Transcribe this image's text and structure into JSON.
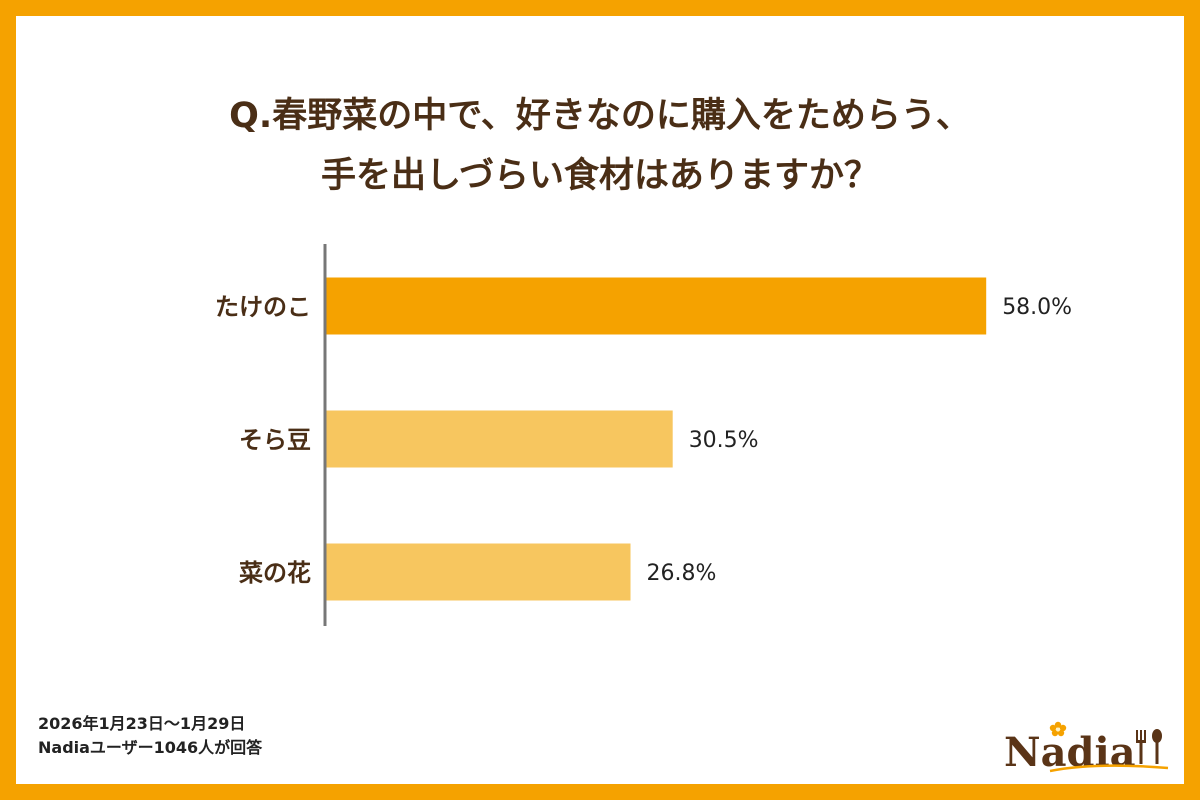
{
  "title": {
    "line1": "Q.春野菜の中で、好きなのに購入をためらう、",
    "line2": "手を出しづらい食材はありますか？"
  },
  "footer": {
    "period": "2026年1月23日～1月29日",
    "respondents": "Nadiaユーザー1046人が回答"
  },
  "logo": {
    "text": "Nadia"
  },
  "colors": {
    "frame": "#f5a200",
    "highlight_bar": "#f5a200",
    "bar": "#f7c65f",
    "text": "#4a2e16",
    "axis": "#777777"
  },
  "chart_data": {
    "type": "bar",
    "orientation": "horizontal",
    "categories": [
      "たけのこ",
      "そら豆",
      "菜の花"
    ],
    "values": [
      58.0,
      30.5,
      26.8
    ],
    "value_labels": [
      "58.0%",
      "30.5%",
      "26.8%"
    ],
    "unit": "%",
    "highlight_index": 0,
    "xlim": [
      0,
      100
    ],
    "grid": false,
    "legend": "none"
  }
}
